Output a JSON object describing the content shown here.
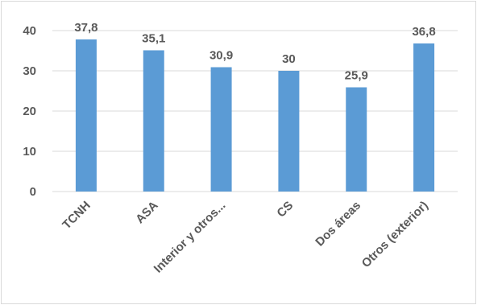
{
  "chart_data": {
    "type": "bar",
    "categories": [
      "TCNH",
      "ASA",
      "Interior y otros...",
      "CS",
      "Dos áreas",
      "Otros (exterior)"
    ],
    "values": [
      37.8,
      35.1,
      30.9,
      30,
      25.9,
      36.8
    ],
    "value_labels": [
      "37,8",
      "35,1",
      "30,9",
      "30",
      "25,9",
      "36,8"
    ],
    "y_ticks": [
      0,
      10,
      20,
      30,
      40
    ],
    "ylim": [
      0,
      40
    ],
    "title": "",
    "xlabel": "",
    "ylabel": "",
    "grid": true,
    "legend": "none",
    "bar_color": "#5b9bd5",
    "grid_color": "#d9d9d9"
  }
}
